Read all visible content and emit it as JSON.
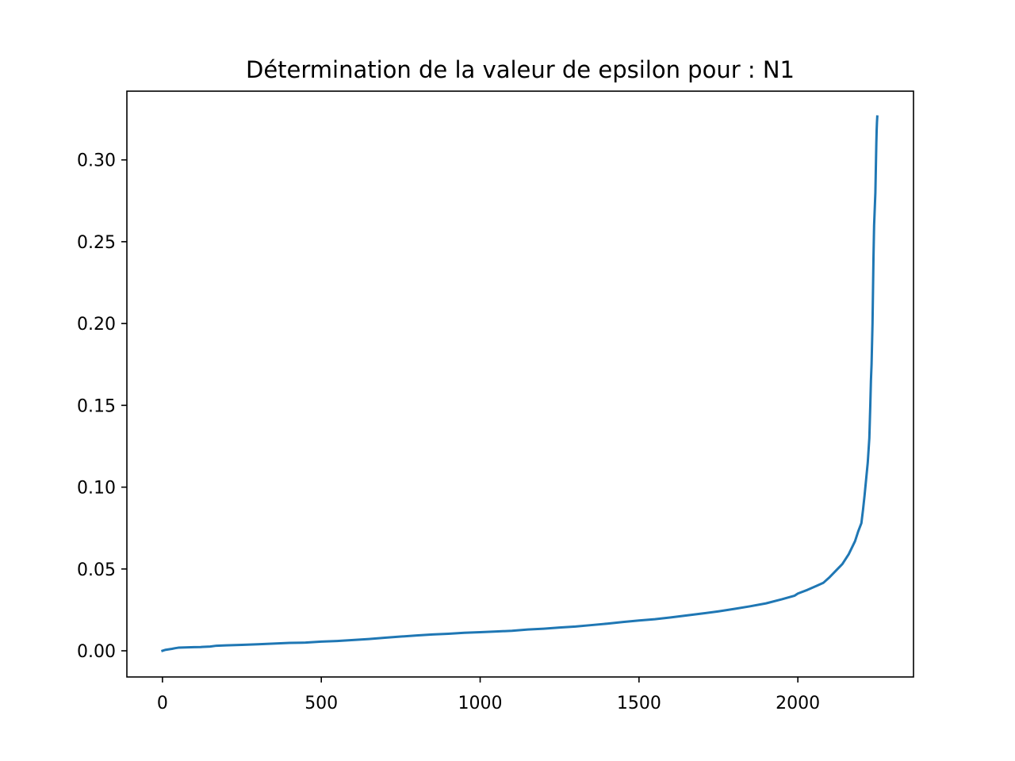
{
  "chart_data": {
    "type": "line",
    "title": "Détermination de la valeur de epsilon pour : N1",
    "xlabel": "",
    "ylabel": "",
    "xlim": [
      -112,
      2364
    ],
    "ylim": [
      -0.016,
      0.342
    ],
    "x_ticks": [
      0,
      500,
      1000,
      1500,
      2000
    ],
    "x_tick_labels": [
      "0",
      "500",
      "1000",
      "1500",
      "2000"
    ],
    "y_ticks": [
      0.0,
      0.05,
      0.1,
      0.15,
      0.2,
      0.25,
      0.3
    ],
    "y_tick_labels": [
      "0.00",
      "0.05",
      "0.10",
      "0.15",
      "0.20",
      "0.25",
      "0.30"
    ],
    "grid": false,
    "legend": "none",
    "line_color": "#1f77b4",
    "series": [
      {
        "x": [
          0,
          10,
          20,
          30,
          40,
          50,
          80,
          100,
          120,
          150,
          170,
          200,
          250,
          300,
          350,
          400,
          450,
          500,
          550,
          600,
          650,
          700,
          750,
          800,
          850,
          900,
          950,
          1000,
          1050,
          1100,
          1150,
          1200,
          1250,
          1300,
          1350,
          1400,
          1450,
          1500,
          1550,
          1600,
          1650,
          1700,
          1750,
          1800,
          1850,
          1900,
          1950,
          1990,
          2000,
          2030,
          2060,
          2080,
          2100,
          2120,
          2140,
          2160,
          2180,
          2190,
          2200,
          2205,
          2210,
          2215,
          2220,
          2225,
          2228,
          2230,
          2232,
          2235,
          2238,
          2240,
          2242,
          2244,
          2245,
          2246,
          2247,
          2248,
          2249,
          2250
        ],
        "y": [
          0.0,
          0.0006,
          0.0009,
          0.0012,
          0.0016,
          0.0019,
          0.0021,
          0.0022,
          0.0023,
          0.0026,
          0.0031,
          0.0033,
          0.0036,
          0.004,
          0.0044,
          0.0048,
          0.005,
          0.0056,
          0.006,
          0.0066,
          0.0072,
          0.008,
          0.0087,
          0.0094,
          0.01,
          0.0104,
          0.011,
          0.0114,
          0.0118,
          0.0122,
          0.013,
          0.0135,
          0.0142,
          0.0148,
          0.0157,
          0.0166,
          0.0176,
          0.0185,
          0.0193,
          0.0204,
          0.0216,
          0.0228,
          0.0241,
          0.0256,
          0.0272,
          0.029,
          0.0315,
          0.0337,
          0.035,
          0.0372,
          0.0398,
          0.0415,
          0.045,
          0.049,
          0.053,
          0.059,
          0.067,
          0.073,
          0.078,
          0.086,
          0.095,
          0.105,
          0.115,
          0.13,
          0.15,
          0.165,
          0.175,
          0.2,
          0.24,
          0.26,
          0.27,
          0.28,
          0.29,
          0.3,
          0.31,
          0.318,
          0.323,
          0.3265
        ]
      }
    ]
  }
}
